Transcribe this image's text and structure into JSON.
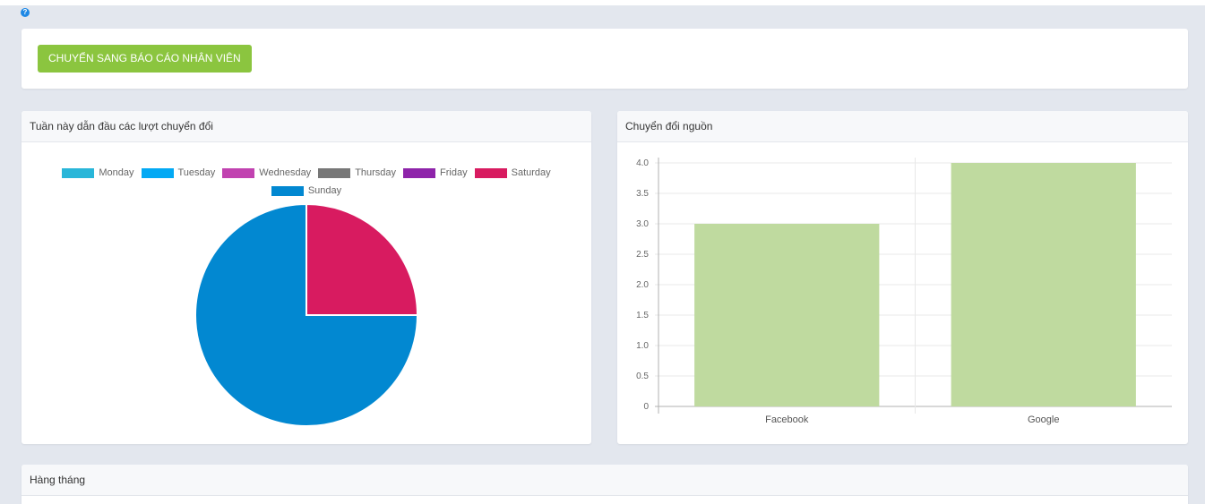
{
  "page": {
    "help_icon": "question-circle-icon",
    "help_glyph": "?"
  },
  "top_card": {
    "switch_button_label": "CHUYỂN SANG BÁO CÁO NHÂN VIÊN",
    "button_color": "#8bc53f"
  },
  "pie_card": {
    "title": "Tuần này dẫn đầu các lượt chuyển đổi",
    "legend": [
      {
        "label": "Monday",
        "color": "#29b6d9"
      },
      {
        "label": "Tuesday",
        "color": "#03a9f4"
      },
      {
        "label": "Wednesday",
        "color": "#c142b0"
      },
      {
        "label": "Thursday",
        "color": "#777777"
      },
      {
        "label": "Friday",
        "color": "#8e24aa"
      },
      {
        "label": "Saturday",
        "color": "#d81b60"
      },
      {
        "label": "Sunday",
        "color": "#0288d1"
      }
    ]
  },
  "bar_card": {
    "title": "Chuyển đổi nguồn"
  },
  "monthly_card": {
    "title": "Hàng tháng"
  },
  "chart_data": [
    {
      "type": "pie",
      "categories": [
        "Monday",
        "Tuesday",
        "Wednesday",
        "Thursday",
        "Friday",
        "Saturday",
        "Sunday"
      ],
      "values": [
        0,
        0,
        0,
        0,
        0,
        1,
        3
      ],
      "colors": [
        "#29b6d9",
        "#03a9f4",
        "#c142b0",
        "#777777",
        "#8e24aa",
        "#d81b60",
        "#0288d1"
      ],
      "title": "Tuần này dẫn đầu các lượt chuyển đổi",
      "legend": "top"
    },
    {
      "type": "bar",
      "categories": [
        "Facebook",
        "Google"
      ],
      "values": [
        3,
        4
      ],
      "color": "#bfda9f",
      "title": "Chuyển đổi nguồn",
      "ylim": [
        0,
        4
      ],
      "yticks": [
        "0",
        "0.5",
        "1.0",
        "1.5",
        "2.0",
        "2.5",
        "3.0",
        "3.5",
        "4.0"
      ],
      "grid": true
    }
  ]
}
